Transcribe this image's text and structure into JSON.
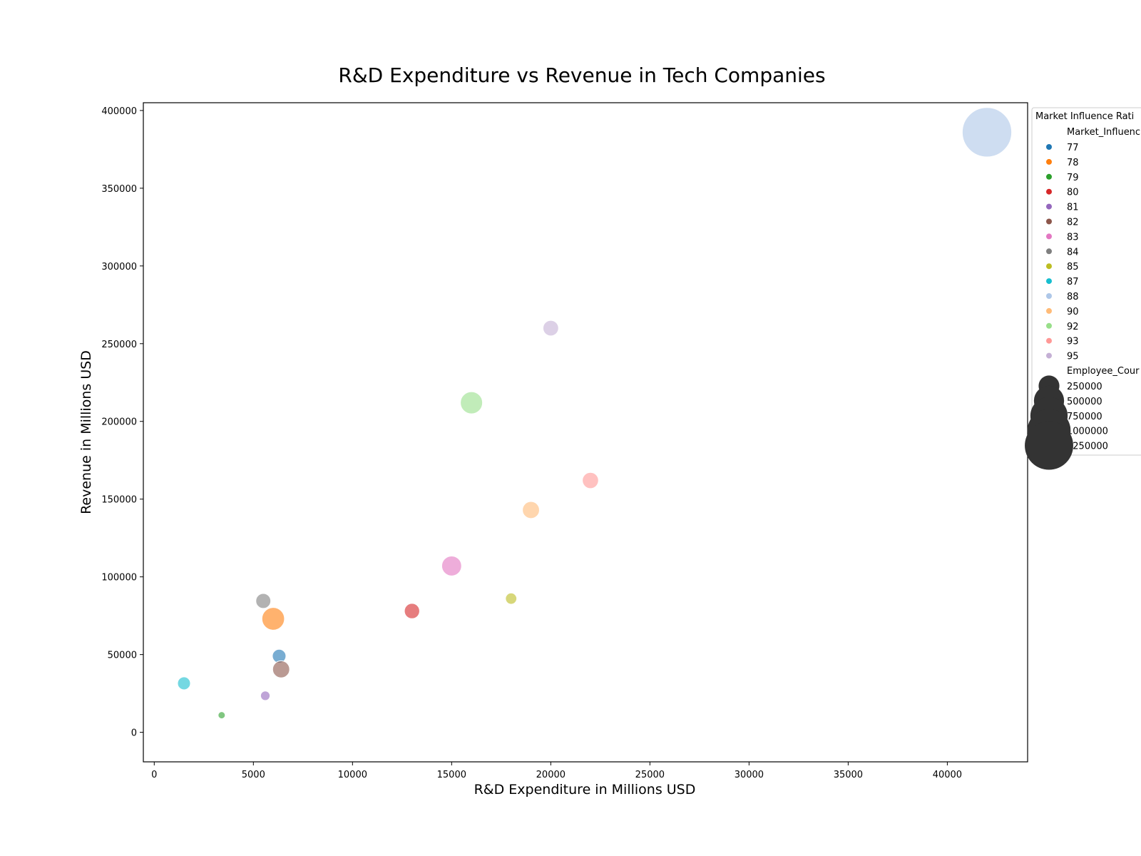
{
  "chart_data": {
    "type": "scatter",
    "title": "R&D Expenditure vs Revenue in Tech Companies",
    "xlabel": "R&D Expenditure in Millions USD",
    "ylabel": "Revenue in Millions USD",
    "xlim": [
      -550,
      44050
    ],
    "ylim": [
      -19000,
      405000
    ],
    "xticks": [
      0,
      5000,
      10000,
      15000,
      20000,
      25000,
      30000,
      35000,
      40000
    ],
    "yticks": [
      0,
      50000,
      100000,
      150000,
      200000,
      250000,
      300000,
      350000,
      400000
    ],
    "grid": false,
    "legend": {
      "title": "Market Influence Rati",
      "placement": "right, outside plot",
      "hue_heading": "Market_Influenc",
      "hue_entries": [
        {
          "label": "77",
          "color": "#1f77b4"
        },
        {
          "label": "78",
          "color": "#ff7f0e"
        },
        {
          "label": "79",
          "color": "#2ca02c"
        },
        {
          "label": "80",
          "color": "#d62728"
        },
        {
          "label": "81",
          "color": "#9467bd"
        },
        {
          "label": "82",
          "color": "#8c564b"
        },
        {
          "label": "83",
          "color": "#e377c2"
        },
        {
          "label": "84",
          "color": "#7f7f7f"
        },
        {
          "label": "85",
          "color": "#bcbd22"
        },
        {
          "label": "87",
          "color": "#17becf"
        },
        {
          "label": "88",
          "color": "#aec7e8"
        },
        {
          "label": "90",
          "color": "#ffbb78"
        },
        {
          "label": "92",
          "color": "#98df8a"
        },
        {
          "label": "93",
          "color": "#ff9896"
        },
        {
          "label": "95",
          "color": "#c5b0d5"
        }
      ],
      "size_heading": "Employee_Cour",
      "size_entries": [
        {
          "label": "250000",
          "value": 250000
        },
        {
          "label": "500000",
          "value": 500000
        },
        {
          "label": "750000",
          "value": 750000
        },
        {
          "label": "1000000",
          "value": 1000000
        },
        {
          "label": "1250000",
          "value": 1250000
        }
      ]
    },
    "points": [
      {
        "x": 42000,
        "y": 386000,
        "influence": "88",
        "employees": 1300000
      },
      {
        "x": 20000,
        "y": 260000,
        "influence": "95",
        "employees": 150000
      },
      {
        "x": 16000,
        "y": 212000,
        "influence": "92",
        "employees": 280000
      },
      {
        "x": 22000,
        "y": 162000,
        "influence": "93",
        "employees": 160000
      },
      {
        "x": 19000,
        "y": 143000,
        "influence": "90",
        "employees": 175000
      },
      {
        "x": 15000,
        "y": 107000,
        "influence": "83",
        "employees": 230000
      },
      {
        "x": 18000,
        "y": 86000,
        "influence": "85",
        "employees": 90000
      },
      {
        "x": 13000,
        "y": 78000,
        "influence": "80",
        "employees": 145000
      },
      {
        "x": 5500,
        "y": 84500,
        "influence": "84",
        "employees": 140000
      },
      {
        "x": 6000,
        "y": 73000,
        "influence": "78",
        "employees": 290000
      },
      {
        "x": 6300,
        "y": 49000,
        "influence": "77",
        "employees": 120000
      },
      {
        "x": 6400,
        "y": 40500,
        "influence": "82",
        "employees": 175000
      },
      {
        "x": 1500,
        "y": 31500,
        "influence": "87",
        "employees": 110000
      },
      {
        "x": 5600,
        "y": 23500,
        "influence": "81",
        "employees": 70000
      },
      {
        "x": 3400,
        "y": 11000,
        "influence": "79",
        "employees": 50000
      }
    ]
  }
}
